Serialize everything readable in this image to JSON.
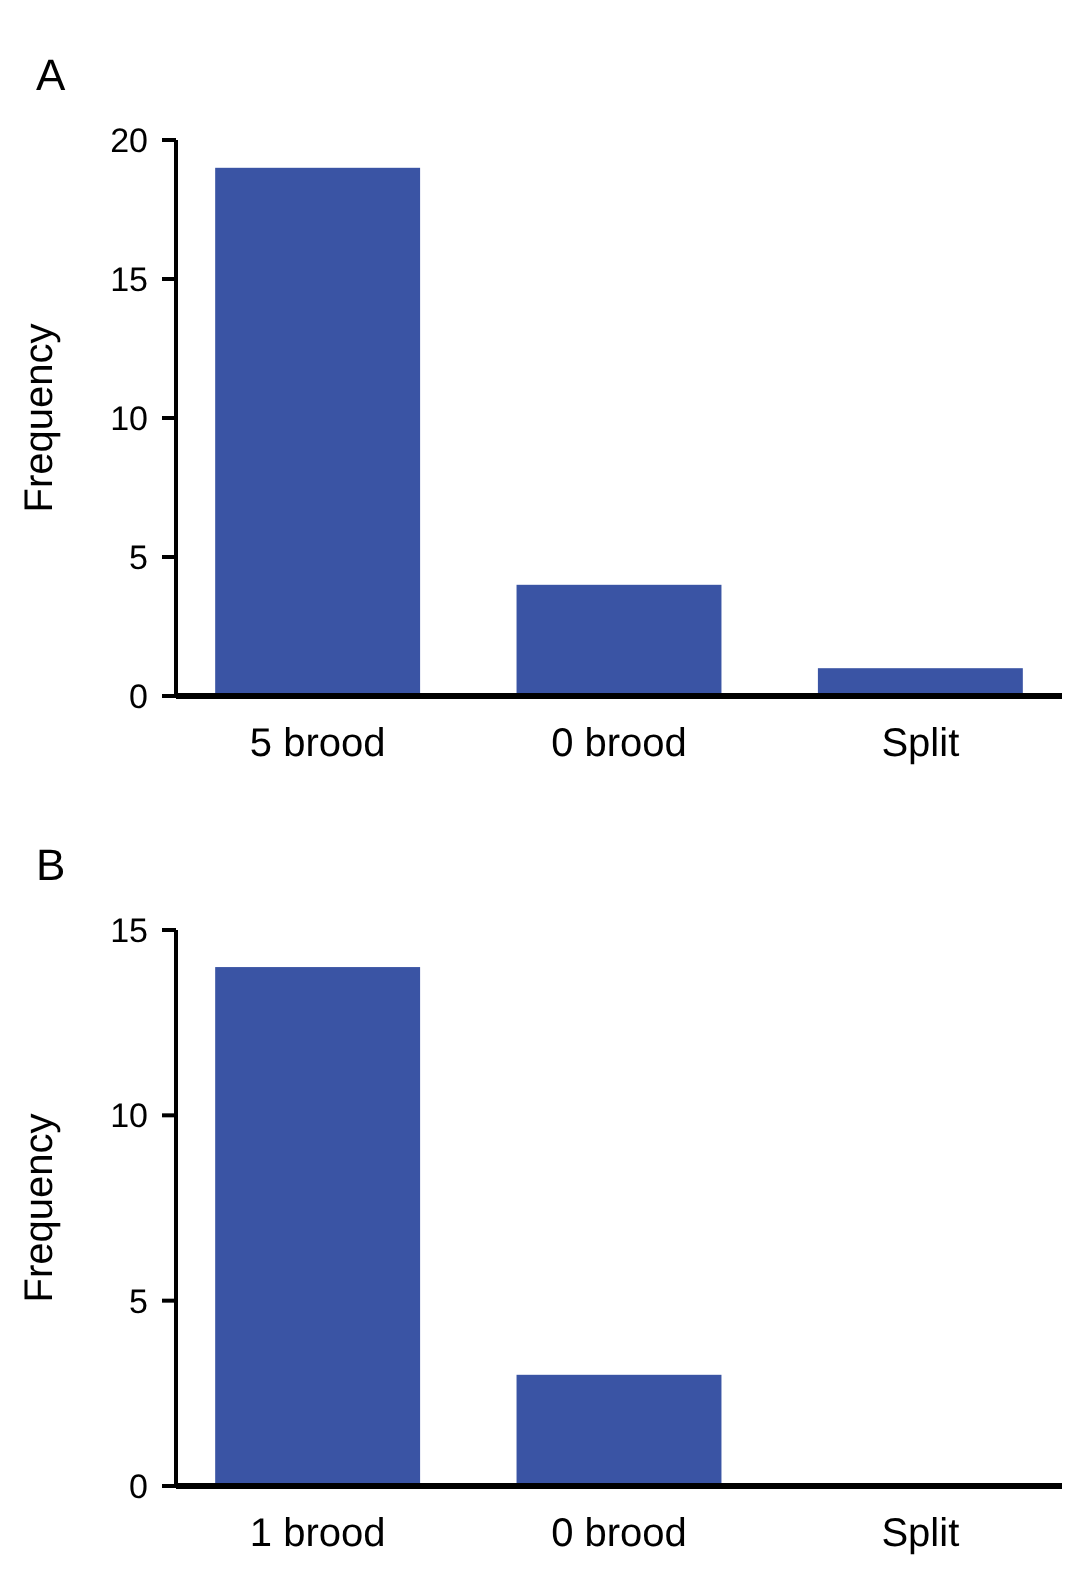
{
  "chart_data": [
    {
      "type": "bar",
      "title": "A",
      "ylabel": "Frequency",
      "categories": [
        "5 brood",
        "0 brood",
        "Split"
      ],
      "values": [
        19,
        4,
        1
      ],
      "color": "#3a54a4",
      "ylim": [
        0,
        20
      ],
      "yticks": [
        0,
        5,
        10,
        15,
        20
      ],
      "grid": false
    },
    {
      "type": "bar",
      "title": "B",
      "ylabel": "Frequency",
      "categories": [
        "1 brood",
        "0 brood",
        "Split"
      ],
      "values": [
        14,
        3,
        0
      ],
      "color": "#3a54a4",
      "ylim": [
        0,
        15
      ],
      "yticks": [
        0,
        5,
        10,
        15
      ],
      "grid": false
    }
  ]
}
